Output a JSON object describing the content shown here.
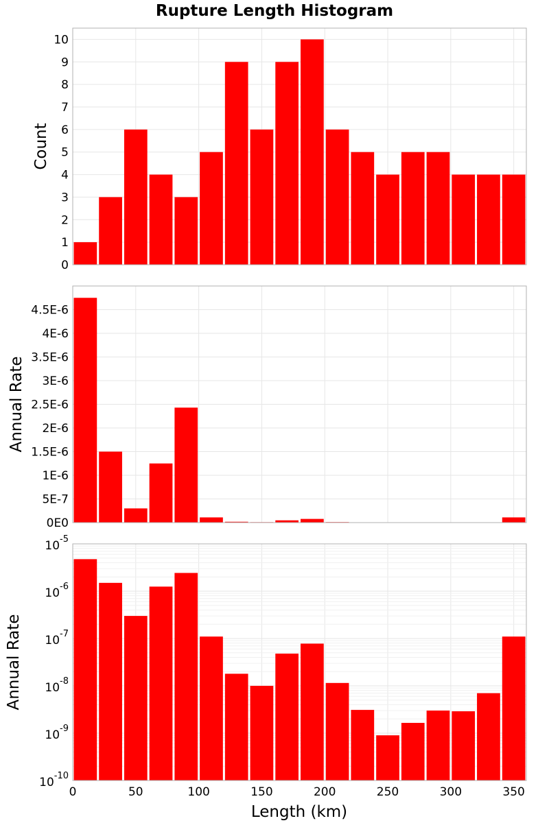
{
  "chart_data": {
    "title": "Rupture Length Histogram",
    "type": "bar",
    "xlabel": "Length (km)",
    "xlim": [
      0,
      360
    ],
    "x_ticks": [
      "0",
      "50",
      "100",
      "150",
      "200",
      "250",
      "300",
      "350"
    ],
    "bin_width": 20,
    "bin_starts": [
      0,
      20,
      40,
      60,
      80,
      100,
      120,
      140,
      160,
      180,
      200,
      220,
      240,
      260,
      280,
      300,
      320,
      340
    ],
    "bar_color": "#ff0000",
    "grid": true,
    "panels": [
      {
        "ylabel": "Count",
        "yscale": "linear",
        "ylim": [
          0,
          10.5
        ],
        "y_ticks": [
          "0",
          "1",
          "2",
          "3",
          "4",
          "5",
          "6",
          "7",
          "8",
          "9",
          "10"
        ],
        "values": [
          1,
          3,
          6,
          4,
          3,
          5,
          9,
          6,
          9,
          10,
          6,
          5,
          4,
          5,
          5,
          4,
          4,
          4
        ]
      },
      {
        "ylabel": "Annual Rate",
        "yscale": "linear",
        "ylim": [
          0,
          5e-06
        ],
        "y_ticks": [
          "0E0",
          "5E-7",
          "1E-6",
          "1.5E-6",
          "2E-6",
          "2.5E-6",
          "3E-6",
          "3.5E-6",
          "4E-6",
          "4.5E-6"
        ],
        "values": [
          4.75e-06,
          1.5e-06,
          3e-07,
          1.25e-06,
          2.43e-06,
          1.1e-07,
          1.8e-08,
          1e-08,
          4.8e-08,
          7.8e-08,
          1.15e-08,
          3.1e-09,
          9e-10,
          1.65e-09,
          3e-09,
          2.9e-09,
          7e-09,
          1.1e-07
        ]
      },
      {
        "ylabel": "Annual Rate",
        "yscale": "log",
        "ylim": [
          1e-10,
          1e-05
        ],
        "y_ticks": [
          {
            "base": "10",
            "exp": "-10"
          },
          {
            "base": "10",
            "exp": "-9"
          },
          {
            "base": "10",
            "exp": "-8"
          },
          {
            "base": "10",
            "exp": "-7"
          },
          {
            "base": "10",
            "exp": "-6"
          },
          {
            "base": "10",
            "exp": "-5"
          }
        ],
        "values": [
          4.75e-06,
          1.5e-06,
          3e-07,
          1.25e-06,
          2.43e-06,
          1.1e-07,
          1.8e-08,
          1e-08,
          4.8e-08,
          7.8e-08,
          1.15e-08,
          3.1e-09,
          9e-10,
          1.65e-09,
          3e-09,
          2.9e-09,
          7e-09,
          1.1e-07
        ]
      }
    ]
  }
}
